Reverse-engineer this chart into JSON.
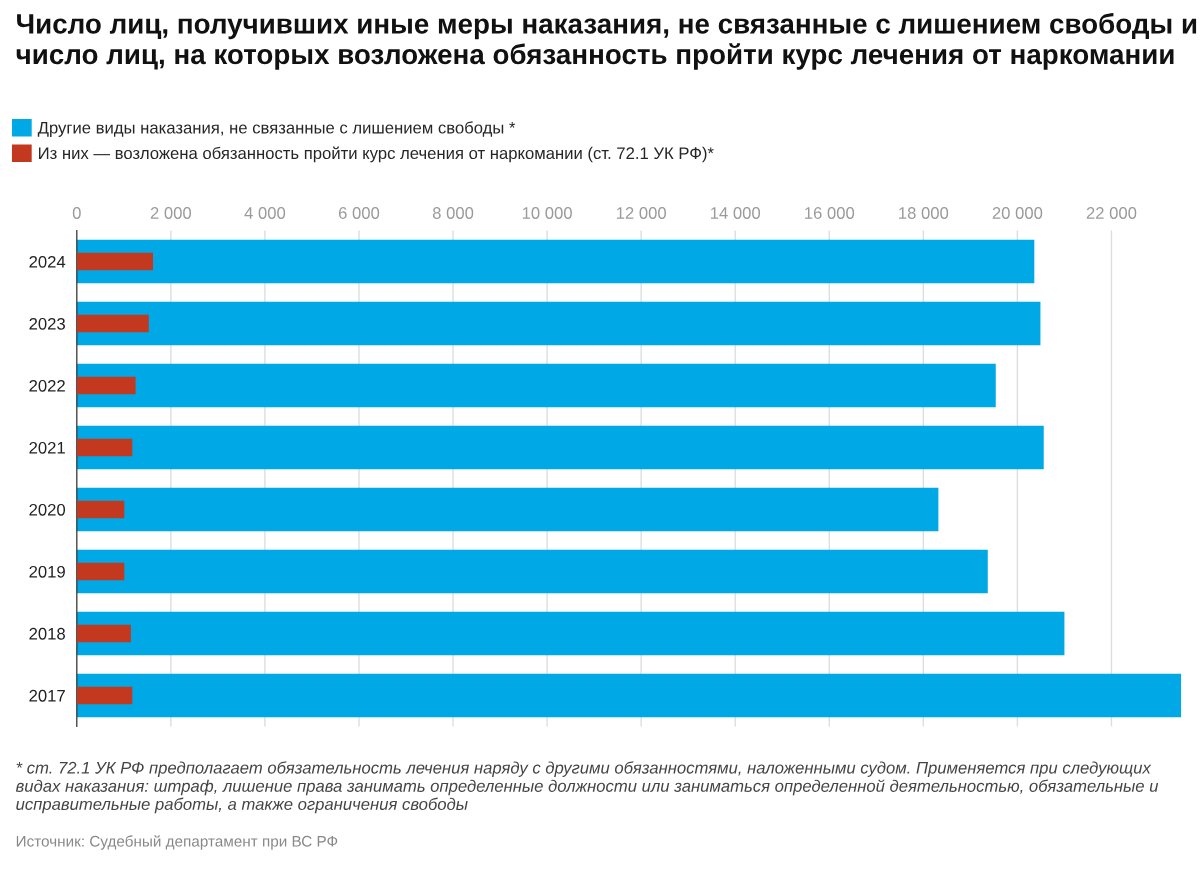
{
  "chart_data": {
    "type": "bar",
    "orientation": "horizontal",
    "title": "Число лиц, получивших иные меры наказания, не связанные с лишением свободы и число лиц, на которых возложена обязанность пройти курс лечения от наркомании",
    "categories": [
      "2024",
      "2023",
      "2022",
      "2021",
      "2020",
      "2019",
      "2018",
      "2017"
    ],
    "series": [
      {
        "name": "Другие виды наказания, не связанные с лишением свободы *",
        "color": "#00a9e5",
        "values": [
          20360,
          20490,
          19540,
          20560,
          18320,
          19370,
          21000,
          23480
        ]
      },
      {
        "name": "Из них — возложена обязанность пройти курс лечения от наркомании (ст. 72.1 УК РФ)*",
        "color": "#c2391f",
        "values": [
          1620,
          1530,
          1250,
          1180,
          1010,
          1010,
          1150,
          1180
        ]
      }
    ],
    "xlim": [
      0,
      23500
    ],
    "xticks": [
      {
        "value": 0,
        "label": "0"
      },
      {
        "value": 2000,
        "label": "2 000"
      },
      {
        "value": 4000,
        "label": "4 000"
      },
      {
        "value": 6000,
        "label": "6 000"
      },
      {
        "value": 8000,
        "label": "8 000"
      },
      {
        "value": 10000,
        "label": "10 000"
      },
      {
        "value": 12000,
        "label": "12 000"
      },
      {
        "value": 14000,
        "label": "14 000"
      },
      {
        "value": 16000,
        "label": "16 000"
      },
      {
        "value": 18000,
        "label": "18 000"
      },
      {
        "value": 20000,
        "label": "20 000"
      },
      {
        "value": 22000,
        "label": "22 000"
      }
    ],
    "grid": "x",
    "legend": "top",
    "annotations": [
      "* ст. 72.1 УК РФ предполагает обязательность лечения наряду с другими обязанностями, наложенными судом. Применяется при следующих видах наказания: штраф, лишение права занимать определенные должности или заниматься определенной деятельностью, обязательные и исправительные работы, а также ограничения свободы",
      "Источник: Судебный департамент при ВС РФ"
    ]
  }
}
